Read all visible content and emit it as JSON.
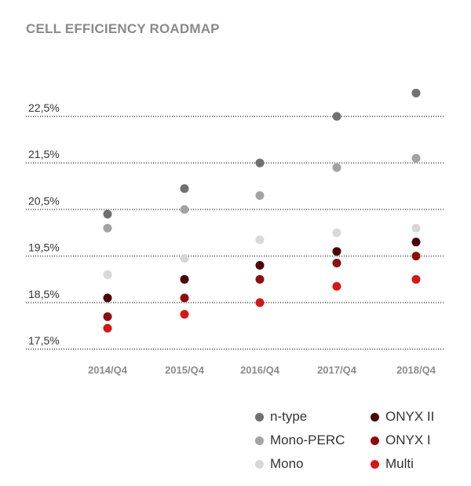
{
  "chart_data": {
    "type": "scatter",
    "title": "CELL EFFICIENCY ROADMAP",
    "categories": [
      "2014/Q4",
      "2015/Q4",
      "2016/Q4",
      "2017/Q4",
      "2018/Q4"
    ],
    "y_ticks": [
      "22,5%",
      "21,5%",
      "20,5%",
      "19,5%",
      "18,5%",
      "17,5%"
    ],
    "ylim": [
      17.5,
      22.5
    ],
    "grid": true,
    "legend_position": "bottom-right",
    "series": [
      {
        "name": "n-type",
        "color": "#707070",
        "values": [
          20.4,
          20.95,
          21.5,
          22.5,
          23.0
        ]
      },
      {
        "name": "Mono-PERC",
        "color": "#a3a3a3",
        "values": [
          20.1,
          20.5,
          20.8,
          21.4,
          21.6
        ]
      },
      {
        "name": "Mono",
        "color": "#d8d8d8",
        "values": [
          19.1,
          19.45,
          19.85,
          20.0,
          20.1
        ]
      },
      {
        "name": "ONYX II",
        "color": "#4a0606",
        "values": [
          18.6,
          19.0,
          19.3,
          19.6,
          19.8
        ]
      },
      {
        "name": "ONYX I",
        "color": "#8c0e0e",
        "values": [
          18.2,
          18.6,
          19.0,
          19.35,
          19.5
        ]
      },
      {
        "name": "Multi",
        "color": "#d61616",
        "values": [
          17.95,
          18.25,
          18.5,
          18.85,
          19.0
        ]
      }
    ]
  },
  "legend": {
    "items": [
      {
        "label": "n-type",
        "color": "#707070"
      },
      {
        "label": "ONYX II",
        "color": "#4a0606"
      },
      {
        "label": "Mono-PERC",
        "color": "#a3a3a3"
      },
      {
        "label": "ONYX I",
        "color": "#8c0e0e"
      },
      {
        "label": "Mono",
        "color": "#d8d8d8"
      },
      {
        "label": "Multi",
        "color": "#d61616"
      }
    ]
  }
}
